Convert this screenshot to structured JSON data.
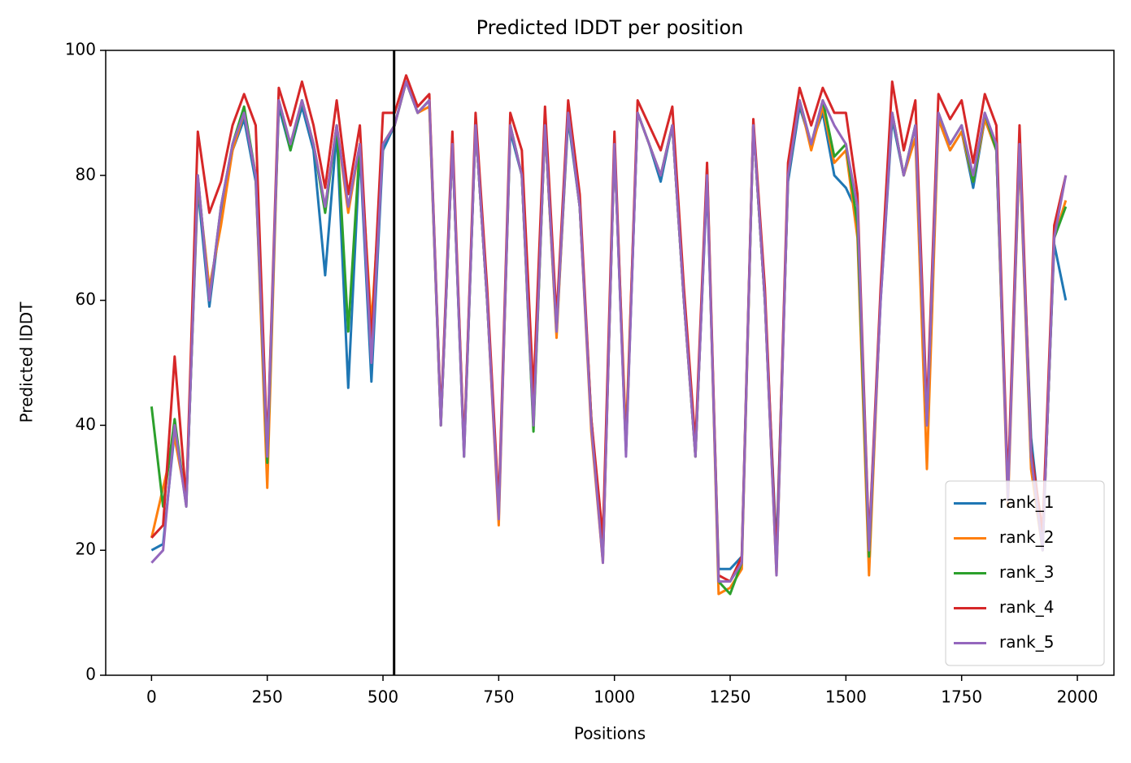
{
  "chart_data": {
    "type": "line",
    "title": "Predicted lDDT per position",
    "xlabel": "Positions",
    "ylabel": "Predicted lDDT",
    "xlim": [
      -99,
      2079
    ],
    "ylim": [
      0,
      100
    ],
    "xticks": [
      0,
      250,
      500,
      750,
      1000,
      1250,
      1500,
      1750,
      2000
    ],
    "yticks": [
      0,
      20,
      40,
      60,
      80,
      100
    ],
    "legend": "lower right",
    "grid": false,
    "vlines": [
      524
    ],
    "vline_color": "#000000",
    "x": [
      0,
      25,
      50,
      75,
      100,
      125,
      150,
      175,
      200,
      225,
      250,
      275,
      300,
      325,
      350,
      375,
      400,
      425,
      450,
      475,
      500,
      525,
      550,
      575,
      600,
      625,
      650,
      675,
      700,
      725,
      750,
      775,
      800,
      825,
      850,
      875,
      900,
      925,
      950,
      975,
      1000,
      1025,
      1050,
      1075,
      1100,
      1125,
      1150,
      1175,
      1200,
      1225,
      1250,
      1275,
      1300,
      1325,
      1350,
      1375,
      1400,
      1425,
      1450,
      1475,
      1500,
      1525,
      1550,
      1575,
      1600,
      1625,
      1650,
      1675,
      1700,
      1725,
      1750,
      1775,
      1800,
      1825,
      1850,
      1875,
      1900,
      1925,
      1950,
      1975
    ],
    "series": [
      {
        "name": "rank_1",
        "color": "#1f77b4",
        "values": [
          20,
          21,
          39,
          28,
          78,
          59,
          74,
          84,
          89,
          79,
          36,
          91,
          84,
          91,
          84,
          64,
          87,
          46,
          84,
          47,
          84,
          88,
          95,
          90,
          92,
          41,
          85,
          36,
          88,
          60,
          26,
          87,
          80,
          41,
          88,
          55,
          89,
          75,
          41,
          19,
          85,
          36,
          90,
          85,
          79,
          88,
          60,
          36,
          79,
          17,
          17,
          19,
          88,
          60,
          20,
          79,
          91,
          85,
          90,
          80,
          78,
          74,
          21,
          60,
          89,
          80,
          88,
          41,
          89,
          84,
          87,
          78,
          89,
          84,
          29,
          84,
          38,
          21,
          69,
          60
        ]
      },
      {
        "name": "rank_2",
        "color": "#ff7f0e",
        "values": [
          22,
          30,
          38,
          28,
          79,
          62,
          72,
          84,
          90,
          80,
          30,
          92,
          85,
          92,
          85,
          75,
          88,
          74,
          85,
          56,
          85,
          88,
          95,
          90,
          91,
          40,
          85,
          36,
          88,
          60,
          24,
          88,
          80,
          40,
          88,
          54,
          90,
          75,
          39,
          18,
          85,
          38,
          90,
          85,
          80,
          88,
          60,
          35,
          81,
          13,
          14,
          17,
          88,
          60,
          16,
          80,
          92,
          84,
          91,
          82,
          84,
          70,
          16,
          61,
          90,
          80,
          86,
          33,
          89,
          84,
          87,
          79,
          89,
          84,
          27,
          84,
          33,
          20,
          70,
          76
        ]
      },
      {
        "name": "rank_3",
        "color": "#2ca02c",
        "values": [
          43,
          27,
          41,
          27,
          80,
          60,
          75,
          85,
          91,
          80,
          34,
          92,
          84,
          92,
          85,
          74,
          88,
          55,
          85,
          51,
          85,
          88,
          95,
          90,
          92,
          40,
          85,
          35,
          88,
          60,
          26,
          88,
          80,
          39,
          88,
          55,
          90,
          75,
          41,
          19,
          85,
          36,
          90,
          85,
          80,
          88,
          60,
          35,
          81,
          15,
          13,
          18,
          88,
          60,
          17,
          80,
          92,
          85,
          92,
          83,
          85,
          72,
          19,
          61,
          90,
          80,
          88,
          40,
          90,
          85,
          88,
          79,
          90,
          84,
          29,
          85,
          35,
          20,
          70,
          75
        ]
      },
      {
        "name": "rank_4",
        "color": "#d62728",
        "values": [
          22,
          24,
          51,
          28,
          87,
          74,
          79,
          88,
          93,
          88,
          36,
          94,
          88,
          95,
          88,
          78,
          92,
          77,
          88,
          53,
          90,
          90,
          96,
          91,
          93,
          41,
          87,
          36,
          90,
          62,
          27,
          90,
          84,
          45,
          91,
          57,
          92,
          77,
          41,
          22,
          87,
          36,
          92,
          88,
          84,
          91,
          62,
          37,
          82,
          16,
          15,
          19,
          89,
          62,
          18,
          82,
          94,
          88,
          94,
          90,
          90,
          77,
          21,
          62,
          95,
          84,
          92,
          42,
          93,
          89,
          92,
          82,
          93,
          88,
          30,
          88,
          36,
          23,
          72,
          80
        ]
      },
      {
        "name": "rank_5",
        "color": "#9467bd",
        "values": [
          18,
          20,
          40,
          27,
          80,
          60,
          75,
          85,
          90,
          80,
          35,
          92,
          85,
          92,
          85,
          75,
          88,
          75,
          85,
          50,
          85,
          88,
          95,
          90,
          92,
          40,
          85,
          35,
          88,
          60,
          25,
          88,
          80,
          40,
          88,
          55,
          90,
          75,
          40,
          18,
          85,
          35,
          90,
          85,
          80,
          88,
          60,
          35,
          80,
          15,
          15,
          18,
          88,
          60,
          16,
          80,
          92,
          85,
          92,
          88,
          85,
          75,
          20,
          60,
          90,
          80,
          88,
          40,
          90,
          85,
          88,
          80,
          90,
          85,
          28,
          85,
          35,
          20,
          70,
          80
        ]
      }
    ]
  }
}
